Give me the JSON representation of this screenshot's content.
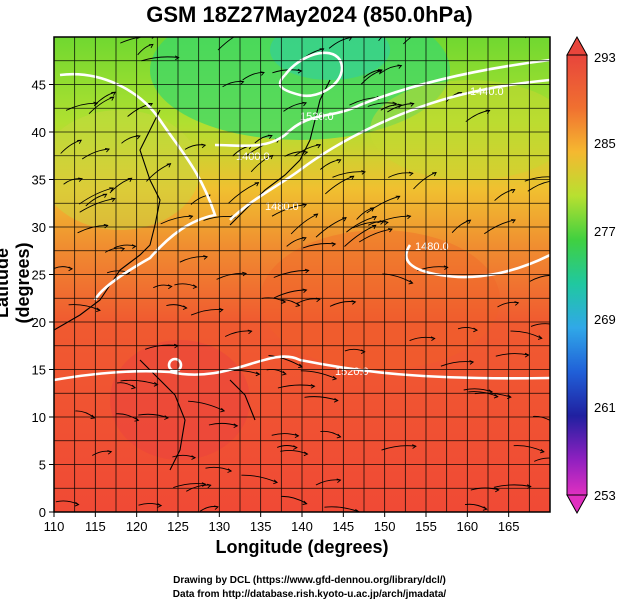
{
  "title": "GSM 18Z27May2024 (850.0hPa)",
  "map": {
    "xlabel": "Longitude (degrees)",
    "ylabel": "Latitude  (degrees)",
    "lon_range": [
      110,
      170
    ],
    "lat_range": [
      0,
      50
    ],
    "lon_ticks": [
      "110",
      "115",
      "120",
      "125",
      "130",
      "135",
      "140",
      "145",
      "150",
      "155",
      "160",
      "165"
    ],
    "lat_ticks": [
      "0",
      "5",
      "10",
      "15",
      "20",
      "25",
      "30",
      "35",
      "40",
      "45"
    ],
    "field": "temperature (K), shaded",
    "contours": {
      "labels": [
        "1520.0",
        "1400.0",
        "1480.0",
        "1440.0",
        "1480.0",
        "1520.0"
      ],
      "color": "#ffffff"
    },
    "wind_streamlines": true
  },
  "colorbar": {
    "ticks": [
      "293",
      "285",
      "277",
      "269",
      "261",
      "253"
    ],
    "range": [
      253,
      293
    ]
  },
  "credits": {
    "line1": "Drawing by DCL (https://www.gfd-dennou.org/library/dcl/)",
    "line2": "Data from http://database.rish.kyoto-u.ac.jp/arch/jmadata/"
  }
}
